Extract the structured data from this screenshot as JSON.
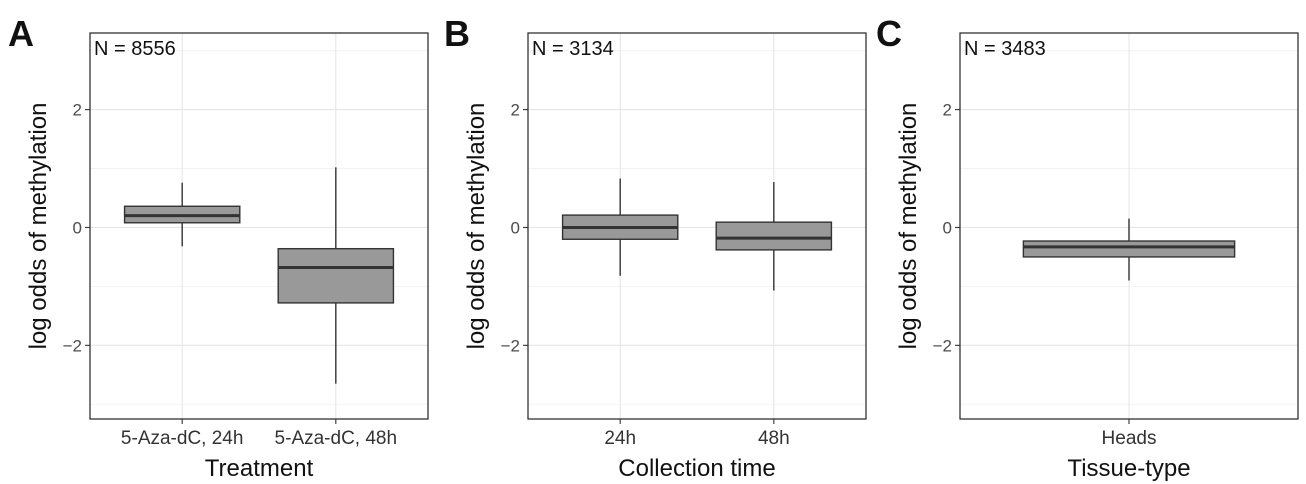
{
  "chart_data": [
    {
      "type": "box",
      "panel_label": "A",
      "annotation": "N = 8556",
      "xlabel": "Treatment",
      "ylabel": "log odds of methylation",
      "ylim": [
        -3.25,
        3.3
      ],
      "yticks": [
        -2,
        0,
        2
      ],
      "ytick_labels": [
        "−2",
        "0",
        "2"
      ],
      "grid": true,
      "box_color": "#999999",
      "categories": [
        "5-Aza-dC, 24h",
        "5-Aza-dC, 48h"
      ],
      "boxes": [
        {
          "category": "5-Aza-dC, 24h",
          "whisker_low": -0.32,
          "q1": 0.08,
          "median": 0.2,
          "q3": 0.36,
          "whisker_high": 0.76
        },
        {
          "category": "5-Aza-dC, 48h",
          "whisker_low": -2.65,
          "q1": -1.28,
          "median": -0.68,
          "q3": -0.36,
          "whisker_high": 1.02
        }
      ]
    },
    {
      "type": "box",
      "panel_label": "B",
      "annotation": "N = 3134",
      "xlabel": "Collection time",
      "ylabel": "log odds of methylation",
      "ylim": [
        -3.25,
        3.3
      ],
      "yticks": [
        -2,
        0,
        2
      ],
      "ytick_labels": [
        "−2",
        "0",
        "2"
      ],
      "grid": true,
      "box_color": "#999999",
      "categories": [
        "24h",
        "48h"
      ],
      "boxes": [
        {
          "category": "24h",
          "whisker_low": -0.82,
          "q1": -0.2,
          "median": 0.0,
          "q3": 0.21,
          "whisker_high": 0.83
        },
        {
          "category": "48h",
          "whisker_low": -1.07,
          "q1": -0.38,
          "median": -0.18,
          "q3": 0.09,
          "whisker_high": 0.77
        }
      ]
    },
    {
      "type": "box",
      "panel_label": "C",
      "annotation": "N = 3483",
      "xlabel": "Tissue-type",
      "ylabel": "log odds of methylation",
      "ylim": [
        -3.25,
        3.3
      ],
      "yticks": [
        -2,
        0,
        2
      ],
      "ytick_labels": [
        "−2",
        "0",
        "2"
      ],
      "grid": true,
      "box_color": "#999999",
      "categories": [
        "Heads"
      ],
      "boxes": [
        {
          "category": "Heads",
          "whisker_low": -0.9,
          "q1": -0.5,
          "median": -0.33,
          "q3": -0.23,
          "whisker_high": 0.15
        }
      ]
    }
  ]
}
